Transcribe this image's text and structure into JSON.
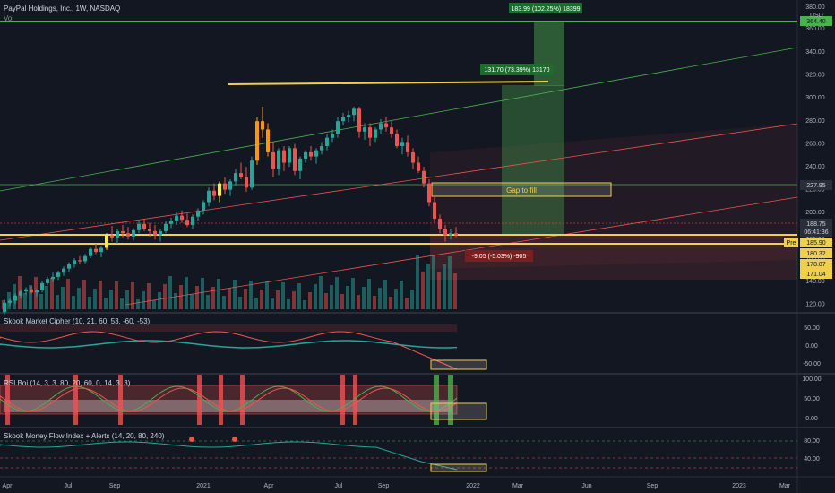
{
  "header": {
    "symbol": "PayPal Holdings, Inc., 1W, NASDAQ",
    "vol_label": "Vol",
    "currency": "USD"
  },
  "price_axis": {
    "ticks": [
      "340.00",
      "320.00",
      "300.00",
      "280.00",
      "260.00",
      "240.00",
      "220.00",
      "200.00",
      "180.00",
      "160.00",
      "140.00",
      "120.00"
    ],
    "ticks_top": [
      "380.00",
      "360.00"
    ],
    "tags": [
      {
        "text": "364.40",
        "bg": "#4caf50",
        "fg": "#131722"
      },
      {
        "text": "227.95",
        "bg": "#2a2e39",
        "fg": "#d1d4dc"
      },
      {
        "text": "188.75",
        "bg": "#2a2e39",
        "fg": "#d1d4dc"
      },
      {
        "text": "06:41:36",
        "bg": "#2a2e39",
        "fg": "#d1d4dc"
      },
      {
        "text": "185.90",
        "bg": "#f0d04a",
        "fg": "#131722"
      },
      {
        "text": "180.32",
        "bg": "#f0d04a",
        "fg": "#131722"
      },
      {
        "text": "178.87",
        "bg": "#f0d04a",
        "fg": "#131722"
      },
      {
        "text": "171.04",
        "bg": "#f0d04a",
        "fg": "#131722"
      }
    ],
    "pre_label": "Pre"
  },
  "annotations": {
    "top_measure": "183.99 (102.25%) 18399",
    "mid_measure": "131.70 (73.39%) 13170",
    "gap_label": "Gap to fill",
    "down_measure": "-9.05 (-5.03%) -905"
  },
  "indicators": {
    "market_cipher": {
      "title": "Skook Market Cipher (10, 21, 60, 53, -60, -53)",
      "ticks": [
        "50.00",
        "0.00",
        "-50.00"
      ]
    },
    "rsi": {
      "title": "RSI Boi (14, 3, 3, 80, 20, 60, 0, 14, 3, 3)",
      "ticks": [
        "100.00",
        "50.00",
        "0.00"
      ]
    },
    "mfi": {
      "title": "Skook Money Flow Index + Alerts (14, 20, 80, 240)",
      "ticks": [
        "80.00",
        "40.00"
      ]
    }
  },
  "time_axis": [
    "Apr",
    "Jul",
    "Sep",
    "2021",
    "Apr",
    "Jul",
    "Sep",
    "2022",
    "Mar",
    "Jun",
    "Sep",
    "2023",
    "Mar"
  ],
  "colors": {
    "up": "#26a69a",
    "down": "#ef5350",
    "yellow": "#f0d04a",
    "green_box": "#4caf50"
  },
  "chart_data": {
    "type": "candlestick",
    "title": "PayPal Holdings, Inc., 1W, NASDAQ",
    "ohlc": [
      [
        112,
        124,
        110,
        121
      ],
      [
        121,
        125,
        118,
        123
      ],
      [
        123,
        130,
        120,
        128
      ],
      [
        128,
        134,
        126,
        132
      ],
      [
        132,
        136,
        129,
        134
      ],
      [
        134,
        137,
        130,
        131
      ],
      [
        131,
        134,
        127,
        133
      ],
      [
        133,
        142,
        131,
        140
      ],
      [
        140,
        146,
        138,
        144
      ],
      [
        144,
        150,
        141,
        146
      ],
      [
        146,
        152,
        143,
        150
      ],
      [
        150,
        156,
        147,
        154
      ],
      [
        154,
        160,
        151,
        158
      ],
      [
        158,
        164,
        155,
        162
      ],
      [
        162,
        166,
        158,
        161
      ],
      [
        161,
        168,
        159,
        166
      ],
      [
        166,
        175,
        164,
        173
      ],
      [
        173,
        178,
        168,
        170
      ],
      [
        170,
        176,
        165,
        174
      ],
      [
        174,
        188,
        172,
        186
      ],
      [
        186,
        195,
        180,
        184
      ],
      [
        184,
        192,
        178,
        190
      ],
      [
        190,
        196,
        184,
        188
      ],
      [
        188,
        194,
        182,
        185
      ],
      [
        185,
        193,
        181,
        191
      ],
      [
        191,
        200,
        188,
        197
      ],
      [
        197,
        202,
        190,
        192
      ],
      [
        192,
        198,
        185,
        190
      ],
      [
        190,
        196,
        182,
        186
      ],
      [
        186,
        192,
        180,
        190
      ],
      [
        190,
        200,
        188,
        197
      ],
      [
        197,
        203,
        193,
        200
      ],
      [
        200,
        208,
        196,
        205
      ],
      [
        205,
        210,
        198,
        201
      ],
      [
        201,
        207,
        194,
        196
      ],
      [
        196,
        206,
        192,
        204
      ],
      [
        204,
        212,
        200,
        210
      ],
      [
        210,
        220,
        206,
        218
      ],
      [
        218,
        232,
        214,
        229
      ],
      [
        229,
        236,
        220,
        224
      ],
      [
        224,
        238,
        218,
        236
      ],
      [
        236,
        242,
        226,
        230
      ],
      [
        230,
        240,
        224,
        238
      ],
      [
        238,
        250,
        234,
        246
      ],
      [
        246,
        256,
        240,
        242
      ],
      [
        242,
        252,
        228,
        232
      ],
      [
        232,
        262,
        230,
        258
      ],
      [
        258,
        300,
        254,
        296
      ],
      [
        296,
        310,
        280,
        288
      ],
      [
        288,
        294,
        262,
        266
      ],
      [
        266,
        276,
        242,
        250
      ],
      [
        250,
        270,
        244,
        268
      ],
      [
        268,
        272,
        248,
        256
      ],
      [
        256,
        272,
        252,
        270
      ],
      [
        270,
        274,
        244,
        248
      ],
      [
        248,
        262,
        240,
        260
      ],
      [
        260,
        268,
        256,
        266
      ],
      [
        266,
        272,
        258,
        262
      ],
      [
        262,
        270,
        255,
        268
      ],
      [
        268,
        276,
        264,
        272
      ],
      [
        272,
        284,
        268,
        280
      ],
      [
        280,
        288,
        276,
        284
      ],
      [
        284,
        300,
        280,
        296
      ],
      [
        296,
        304,
        292,
        300
      ],
      [
        300,
        306,
        295,
        302
      ],
      [
        302,
        310,
        296,
        308
      ],
      [
        308,
        310,
        280,
        286
      ],
      [
        286,
        294,
        278,
        290
      ],
      [
        290,
        294,
        272,
        280
      ],
      [
        280,
        290,
        276,
        288
      ],
      [
        288,
        298,
        284,
        294
      ],
      [
        294,
        300,
        286,
        290
      ],
      [
        290,
        296,
        280,
        284
      ],
      [
        284,
        288,
        270,
        272
      ],
      [
        272,
        280,
        264,
        276
      ],
      [
        276,
        282,
        262,
        266
      ],
      [
        266,
        270,
        250,
        256
      ],
      [
        256,
        262,
        246,
        248
      ],
      [
        248,
        252,
        232,
        236
      ],
      [
        236,
        240,
        214,
        218
      ],
      [
        218,
        224,
        198,
        202
      ],
      [
        202,
        206,
        188,
        192
      ],
      [
        192,
        196,
        180,
        186
      ],
      [
        186,
        192,
        182,
        188
      ],
      [
        188,
        194,
        184,
        186
      ]
    ]
  }
}
